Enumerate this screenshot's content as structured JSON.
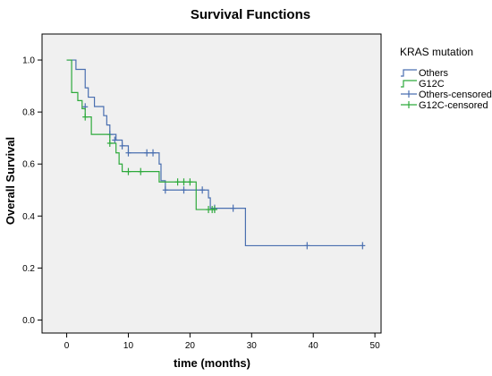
{
  "chart_data": {
    "type": "line",
    "subtype": "kaplan-meier",
    "title": "Survival Functions",
    "xlabel": "time (months)",
    "ylabel": "Overall Survival",
    "xlim": [
      -4,
      51
    ],
    "ylim": [
      -0.05,
      1.1
    ],
    "xticks": [
      0,
      10,
      20,
      30,
      40,
      50
    ],
    "yticks": [
      0.0,
      0.2,
      0.4,
      0.6,
      0.8,
      1.0
    ],
    "xtick_labels": [
      "0",
      "10",
      "20",
      "30",
      "40",
      "50"
    ],
    "ytick_labels": [
      "0.0",
      "0.2",
      "0.4",
      "0.6",
      "0.8",
      "1.0"
    ],
    "grid": false,
    "plot_background": "#f0f0f0",
    "legend": {
      "title": "KRAS mutation",
      "placement": "right",
      "entries": [
        "Others",
        "G12C",
        "Others-censored",
        "G12C-censored"
      ]
    },
    "series": [
      {
        "name": "Others",
        "color": "#4a6fb0",
        "steps": [
          [
            0,
            1.0
          ],
          [
            1.5,
            0.964
          ],
          [
            3,
            0.893
          ],
          [
            3.5,
            0.857
          ],
          [
            4.5,
            0.821
          ],
          [
            6,
            0.786
          ],
          [
            6.5,
            0.75
          ],
          [
            7,
            0.714
          ],
          [
            8,
            0.692
          ],
          [
            9,
            0.67
          ],
          [
            10,
            0.643
          ],
          [
            15,
            0.6
          ],
          [
            15.3,
            0.536
          ],
          [
            16,
            0.5
          ],
          [
            23,
            0.47
          ],
          [
            23.3,
            0.43
          ],
          [
            29,
            0.286
          ],
          [
            48,
            0.286
          ]
        ],
        "censored": [
          [
            3,
            0.82
          ],
          [
            7,
            0.714
          ],
          [
            7.8,
            0.692
          ],
          [
            9,
            0.67
          ],
          [
            10,
            0.643
          ],
          [
            13,
            0.643
          ],
          [
            14,
            0.643
          ],
          [
            16,
            0.5
          ],
          [
            19,
            0.5
          ],
          [
            22,
            0.5
          ],
          [
            24,
            0.43
          ],
          [
            27,
            0.43
          ],
          [
            39,
            0.286
          ],
          [
            48,
            0.286
          ]
        ]
      },
      {
        "name": "G12C",
        "color": "#2eaa3c",
        "steps": [
          [
            0,
            1.0
          ],
          [
            0.8,
            0.875
          ],
          [
            1.8,
            0.844
          ],
          [
            2.5,
            0.813
          ],
          [
            3,
            0.781
          ],
          [
            4,
            0.714
          ],
          [
            7,
            0.68
          ],
          [
            8,
            0.643
          ],
          [
            8.5,
            0.6
          ],
          [
            9,
            0.571
          ],
          [
            15,
            0.531
          ],
          [
            21,
            0.425
          ],
          [
            24,
            0.425
          ]
        ],
        "censored": [
          [
            3,
            0.781
          ],
          [
            7,
            0.68
          ],
          [
            10,
            0.571
          ],
          [
            12,
            0.571
          ],
          [
            18,
            0.531
          ],
          [
            19,
            0.531
          ],
          [
            20,
            0.531
          ],
          [
            23,
            0.425
          ],
          [
            23.6,
            0.425
          ],
          [
            24,
            0.425
          ]
        ]
      }
    ]
  }
}
